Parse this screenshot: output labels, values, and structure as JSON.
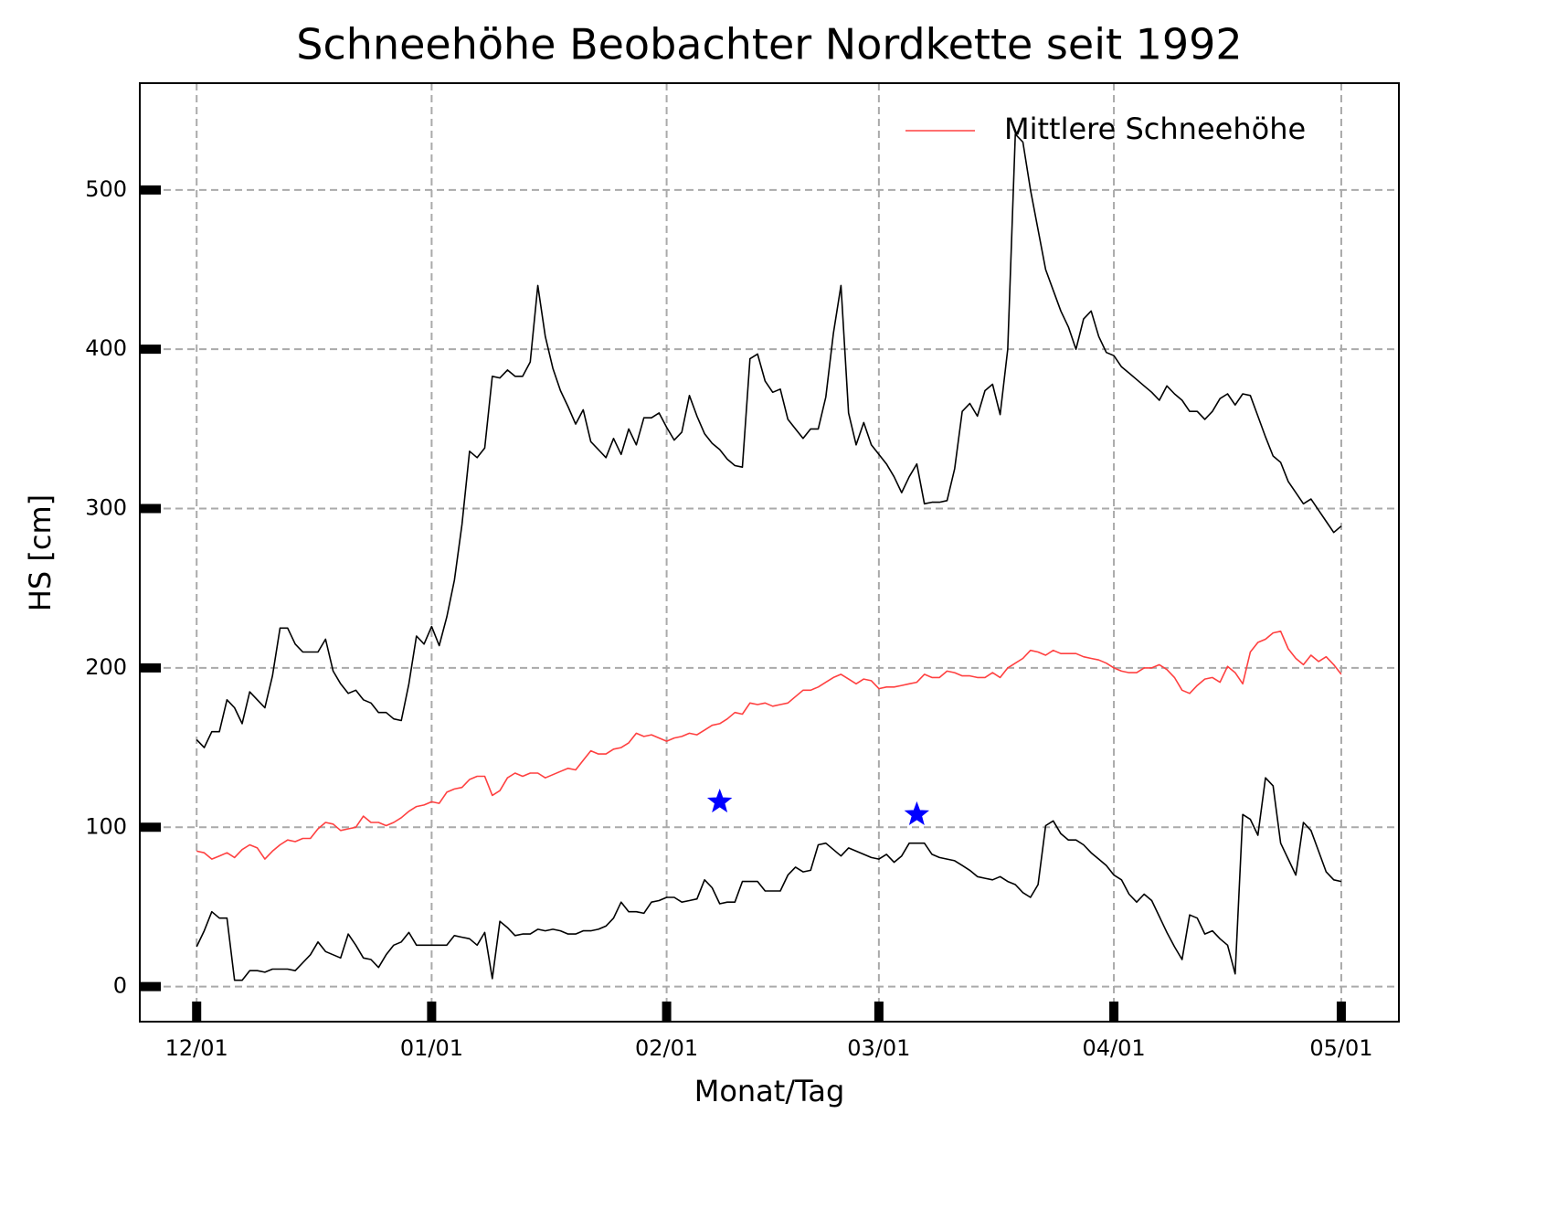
{
  "chart_data": {
    "type": "line",
    "title": "Schneehöhe Beobachter Nordkette seit 1992",
    "xlabel": "Monat/Tag",
    "ylabel": "HS [cm]",
    "x": [
      0,
      1,
      2,
      3,
      4,
      5,
      6,
      7,
      8,
      9,
      10,
      11,
      12,
      13,
      14,
      15,
      16,
      17,
      18,
      19,
      20,
      21,
      22,
      23,
      24,
      25,
      26,
      27,
      28,
      29,
      30,
      31,
      32,
      33,
      34,
      35,
      36,
      37,
      38,
      39,
      40,
      41,
      42,
      43,
      44,
      45,
      46,
      47,
      48,
      49,
      50,
      51,
      52,
      53,
      54,
      55,
      56,
      57,
      58,
      59,
      60,
      61,
      62,
      63,
      64,
      65,
      66,
      67,
      68,
      69,
      70,
      71,
      72,
      73,
      74,
      75,
      76,
      77,
      78,
      79,
      80,
      81,
      82,
      83,
      84,
      85,
      86,
      87,
      88,
      89,
      90,
      91,
      92,
      93,
      94,
      95,
      96,
      97,
      98,
      99,
      100,
      101,
      102,
      103,
      104,
      105,
      106,
      107,
      108,
      109,
      110,
      111,
      112,
      113,
      114,
      115,
      116,
      117,
      118,
      119,
      120,
      121,
      122,
      123,
      124,
      125,
      126,
      127,
      128,
      129,
      130,
      131,
      132,
      133,
      134,
      135,
      136,
      137,
      138,
      139,
      140,
      141,
      142,
      143,
      144,
      145,
      146,
      147,
      148,
      149,
      150,
      151
    ],
    "series": [
      {
        "color": "#000000",
        "values": [
          155,
          150,
          160,
          160,
          180,
          175,
          165,
          185,
          180,
          175,
          195,
          225,
          225,
          215,
          210,
          210,
          210,
          218,
          198,
          190,
          184,
          186,
          180,
          178,
          172,
          172,
          168,
          167,
          190,
          220,
          215,
          226,
          214,
          232,
          255,
          290,
          336,
          332,
          338,
          383,
          382,
          387,
          383,
          383,
          392,
          440,
          408,
          388,
          374,
          364,
          353,
          362,
          342,
          337,
          332,
          344,
          334,
          350,
          340,
          357,
          357,
          360,
          351,
          343,
          348,
          371,
          358,
          347,
          341,
          337,
          331,
          327,
          326,
          394,
          397,
          380,
          373,
          375,
          356,
          350,
          344,
          350,
          350,
          370,
          410,
          440,
          360,
          340,
          354,
          340,
          334,
          328,
          320,
          310,
          320,
          328,
          303,
          304,
          304,
          305,
          325,
          361,
          366,
          358,
          374,
          378,
          359,
          400,
          535,
          530,
          500,
          475,
          450,
          437,
          424,
          414,
          400,
          419,
          424,
          408,
          398,
          396,
          389,
          385,
          381,
          377,
          373,
          368,
          377,
          372,
          368,
          361,
          361,
          356,
          361,
          369,
          372,
          365,
          372,
          371,
          358,
          345,
          333,
          329,
          317,
          310,
          303,
          306,
          299,
          292,
          285,
          289
        ]
      },
      {
        "name": "Mittlere Schneehöhe",
        "color": "#ff4040",
        "values": [
          85,
          84,
          80,
          82,
          84,
          81,
          86,
          89,
          87,
          80,
          85,
          89,
          92,
          91,
          93,
          93,
          99,
          103,
          102,
          98,
          99,
          100,
          107,
          103,
          103,
          101,
          103,
          106,
          110,
          113,
          114,
          116,
          115,
          122,
          124,
          125,
          130,
          132,
          132,
          120,
          123,
          131,
          134,
          132,
          134,
          134,
          131,
          133,
          135,
          137,
          136,
          142,
          148,
          146,
          146,
          149,
          150,
          153,
          159,
          157,
          158,
          156,
          154,
          156,
          157,
          159,
          158,
          161,
          164,
          165,
          168,
          172,
          171,
          178,
          177,
          178,
          176,
          177,
          178,
          182,
          186,
          186,
          188,
          191,
          194,
          196,
          193,
          190,
          193,
          192,
          187,
          188,
          188,
          189,
          190,
          191,
          196,
          194,
          194,
          198,
          197,
          195,
          195,
          194,
          194,
          197,
          194,
          200,
          203,
          206,
          211,
          210,
          208,
          211,
          209,
          209,
          209,
          207,
          206,
          205,
          203,
          200,
          198,
          197,
          197,
          200,
          200,
          202,
          199,
          194,
          186,
          184,
          189,
          193,
          194,
          191,
          201,
          197,
          190,
          210,
          216,
          218,
          222,
          223,
          212,
          206,
          202,
          208,
          204,
          207,
          202,
          196
        ]
      },
      {
        "color": "#000000",
        "values": [
          25,
          35,
          47,
          43,
          43,
          4,
          4,
          10,
          10,
          9,
          11,
          11,
          11,
          10,
          15,
          20,
          28,
          22,
          20,
          18,
          33,
          26,
          18,
          17,
          12,
          20,
          26,
          28,
          34,
          26,
          26,
          26,
          26,
          26,
          32,
          31,
          30,
          26,
          34,
          5,
          41,
          37,
          32,
          33,
          33,
          36,
          35,
          36,
          35,
          33,
          33,
          35,
          35,
          36,
          38,
          43,
          53,
          47,
          47,
          46,
          53,
          54,
          56,
          56,
          53,
          54,
          55,
          67,
          62,
          52,
          53,
          53,
          66,
          66,
          66,
          60,
          60,
          60,
          70,
          75,
          72,
          73,
          89,
          90,
          86,
          82,
          87,
          85,
          83,
          81,
          80,
          83,
          78,
          82,
          90,
          90,
          90,
          83,
          81,
          80,
          79,
          76,
          73,
          69,
          68,
          67,
          69,
          66,
          64,
          59,
          56,
          64,
          101,
          104,
          96,
          92,
          92,
          89,
          84,
          80,
          76,
          70,
          67,
          58,
          53,
          58,
          54,
          44,
          34,
          25,
          17,
          45,
          43,
          33,
          35,
          30,
          26,
          8,
          108,
          105,
          95,
          131,
          126,
          90,
          80,
          70,
          103,
          98,
          85,
          72,
          67,
          66
        ]
      },
      {
        "color": "#0000ff",
        "marker": "star",
        "x": [
          69,
          95
        ],
        "values": [
          116,
          108
        ]
      }
    ],
    "xlim": [
      -7.5,
      158.6
    ],
    "xticks": [
      {
        "value": 0,
        "label": "12/01"
      },
      {
        "value": 31,
        "label": "01/01"
      },
      {
        "value": 62,
        "label": "02/01"
      },
      {
        "value": 90,
        "label": "03/01"
      },
      {
        "value": 121,
        "label": "04/01"
      },
      {
        "value": 151,
        "label": "05/01"
      }
    ],
    "ylim": [
      -22,
      567
    ],
    "yticks": [
      0,
      100,
      200,
      300,
      400,
      500
    ],
    "grid": true,
    "legend": "upper right"
  }
}
